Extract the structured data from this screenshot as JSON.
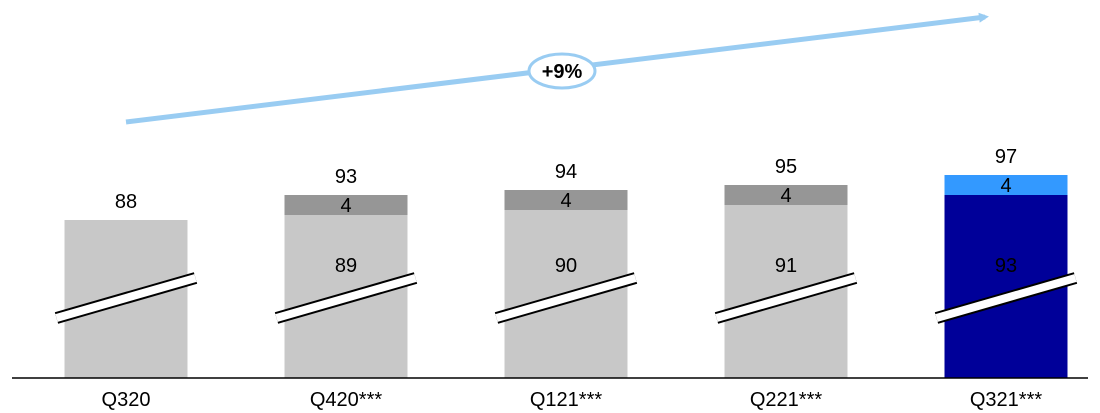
{
  "chart_data": {
    "type": "bar",
    "stacked": true,
    "categories": [
      "Q320",
      "Q420***",
      "Q121***",
      "Q221***",
      "Q321***"
    ],
    "series": [
      {
        "values": [
          88,
          89,
          90,
          91,
          93
        ]
      },
      {
        "values": [
          0,
          4,
          4,
          4,
          4
        ]
      }
    ],
    "totals": [
      null,
      93,
      94,
      95,
      97
    ],
    "top_labels": [
      "88",
      "93",
      "94",
      "95",
      "97"
    ],
    "segment_labels": {
      "base": [
        "",
        "89",
        "90",
        "91",
        "93"
      ],
      "top": [
        "",
        "4",
        "4",
        "4",
        "4"
      ]
    },
    "growth_label": "+9%",
    "axis_break": true,
    "y_axis_visible": false,
    "grid": false,
    "colors": {
      "base_gray": "#c8c8c8",
      "top_gray": "#969696",
      "base_highlight": "#000099",
      "top_highlight": "#3399ff",
      "growth_arrow": "#99ccf2"
    }
  }
}
